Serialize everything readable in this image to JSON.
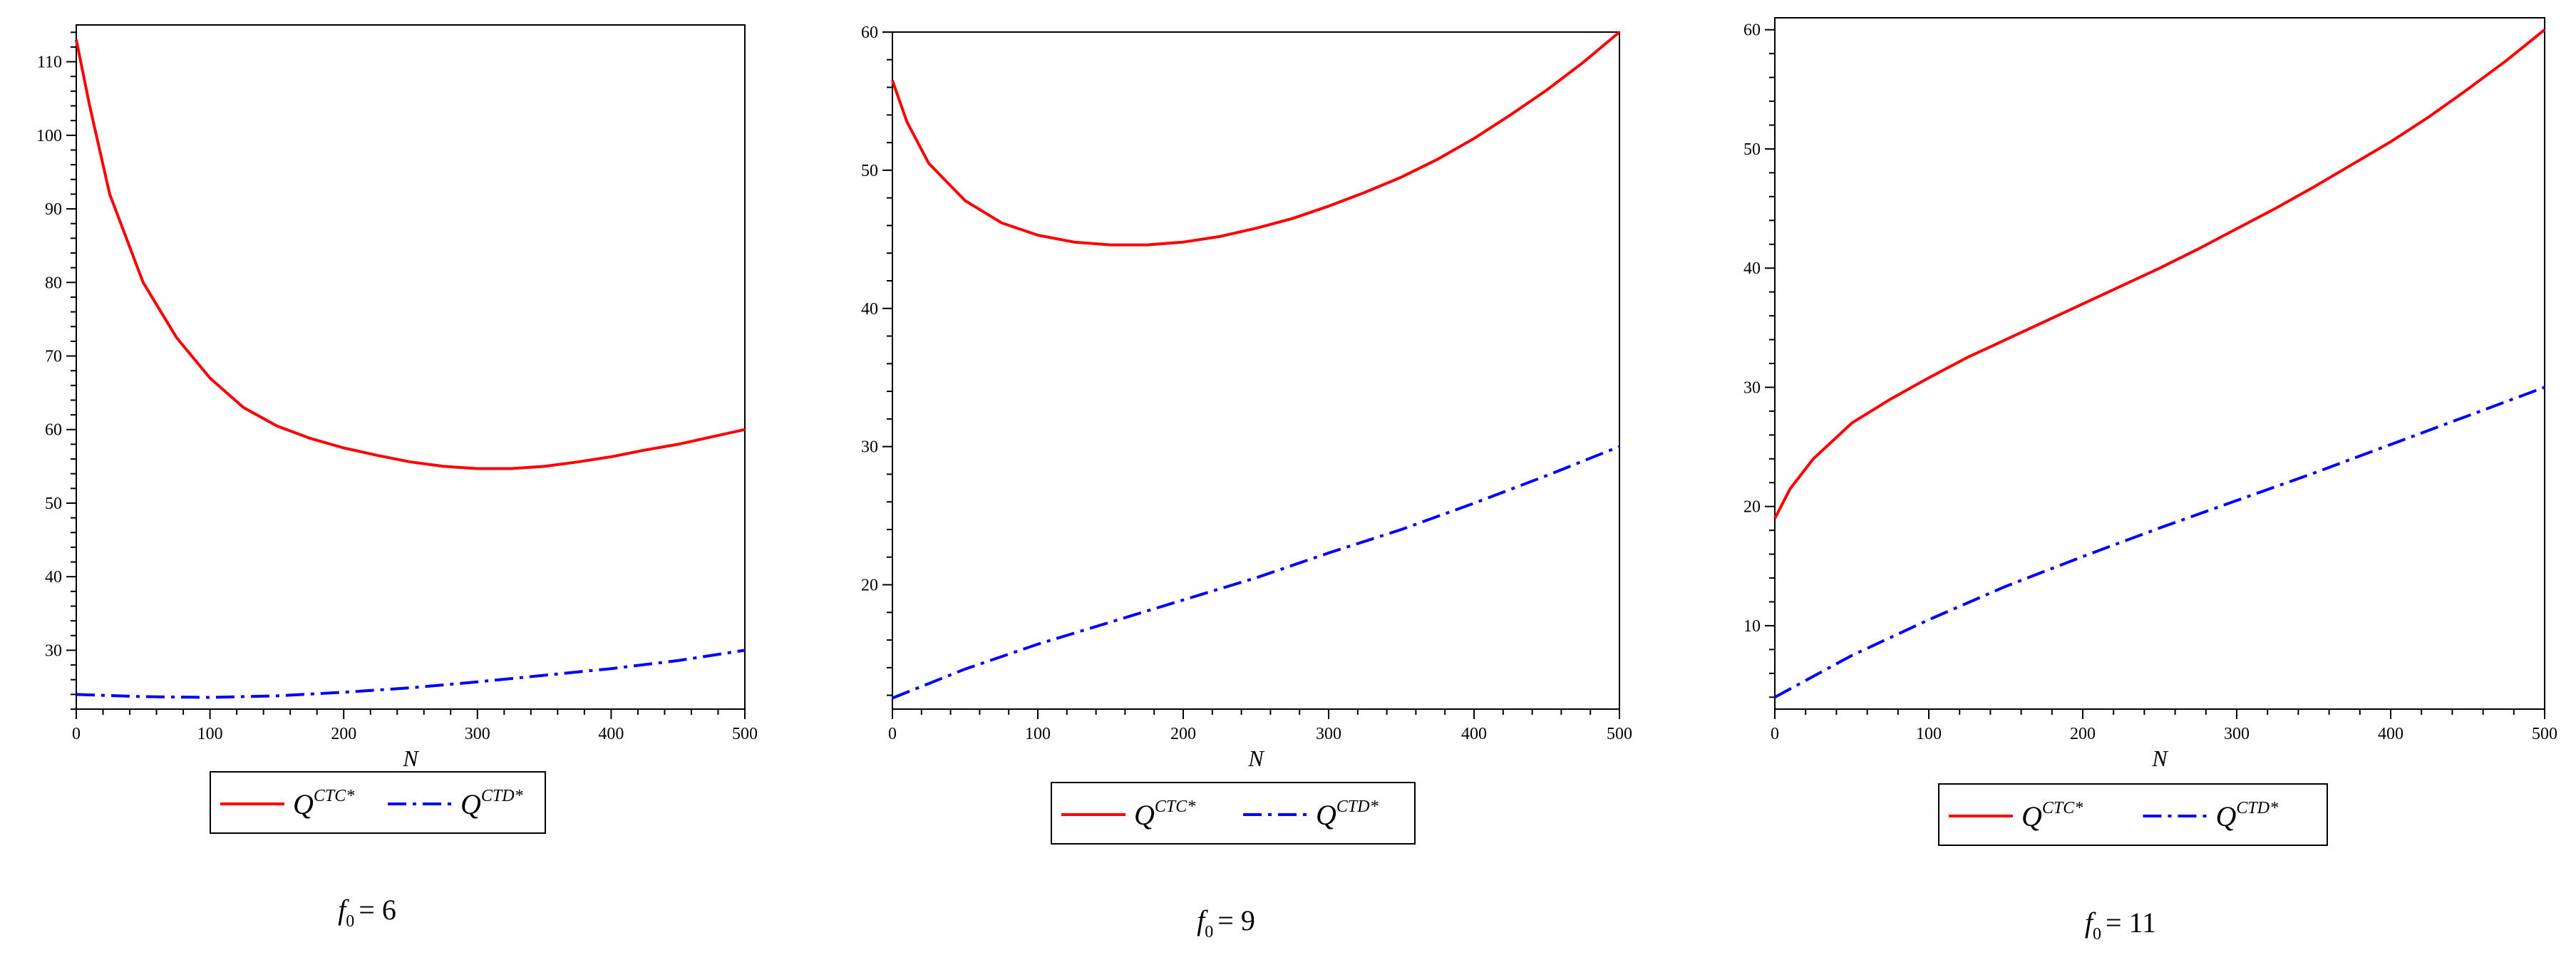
{
  "chart_data": [
    {
      "type": "line",
      "caption": {
        "var": "f",
        "sub": "0",
        "rel": "= 6"
      },
      "xlabel": "N",
      "ylabel": "",
      "xlim": [
        0,
        500
      ],
      "ylim": [
        22,
        115
      ],
      "xticks": [
        0,
        100,
        200,
        300,
        400,
        500
      ],
      "yticks": [
        30,
        40,
        50,
        60,
        70,
        80,
        90,
        100,
        110
      ],
      "legend_position": "below",
      "series": [
        {
          "name": "Q",
          "sup": "CTC*",
          "color": "#ff0000",
          "dash": "solid",
          "x": [
            0,
            10,
            25,
            50,
            75,
            100,
            125,
            150,
            175,
            200,
            225,
            250,
            275,
            300,
            325,
            350,
            375,
            400,
            425,
            450,
            475,
            500
          ],
          "y": [
            113,
            104,
            92,
            80,
            72.5,
            67,
            63,
            60.5,
            58.8,
            57.5,
            56.5,
            55.6,
            55,
            54.7,
            54.7,
            55,
            55.6,
            56.3,
            57.2,
            58,
            59,
            60
          ]
        },
        {
          "name": "Q",
          "sup": "CTD*",
          "color": "#0000ff",
          "dash": "dashdot",
          "x": [
            0,
            50,
            100,
            150,
            200,
            250,
            300,
            350,
            400,
            450,
            500
          ],
          "y": [
            24,
            23.7,
            23.6,
            23.8,
            24.3,
            24.9,
            25.7,
            26.6,
            27.5,
            28.6,
            30
          ]
        }
      ]
    },
    {
      "type": "line",
      "caption": {
        "var": "f",
        "sub": "0",
        "rel": "= 9"
      },
      "xlabel": "N",
      "ylabel": "",
      "xlim": [
        0,
        500
      ],
      "ylim": [
        11,
        60
      ],
      "xticks": [
        0,
        100,
        200,
        300,
        400,
        500
      ],
      "yticks": [
        20,
        30,
        40,
        50,
        60
      ],
      "legend_position": "below",
      "series": [
        {
          "name": "Q",
          "sup": "CTC*",
          "color": "#ff0000",
          "dash": "solid",
          "x": [
            0,
            10,
            25,
            50,
            75,
            100,
            125,
            150,
            175,
            200,
            225,
            250,
            275,
            300,
            325,
            350,
            375,
            400,
            425,
            450,
            475,
            500
          ],
          "y": [
            56.5,
            53.5,
            50.5,
            47.8,
            46.2,
            45.3,
            44.8,
            44.6,
            44.6,
            44.8,
            45.2,
            45.8,
            46.5,
            47.4,
            48.4,
            49.5,
            50.8,
            52.3,
            54,
            55.8,
            57.8,
            60
          ]
        },
        {
          "name": "Q",
          "sup": "CTD*",
          "color": "#0000ff",
          "dash": "dashdot",
          "x": [
            0,
            50,
            100,
            150,
            200,
            250,
            300,
            350,
            400,
            450,
            500
          ],
          "y": [
            11.8,
            13.9,
            15.7,
            17.3,
            18.9,
            20.5,
            22.3,
            24,
            25.9,
            27.9,
            30
          ]
        }
      ]
    },
    {
      "type": "line",
      "caption": {
        "var": "f",
        "sub": "0",
        "rel": "= 11"
      },
      "xlabel": "N",
      "ylabel": "",
      "xlim": [
        0,
        500
      ],
      "ylim": [
        3,
        61
      ],
      "xticks": [
        0,
        100,
        200,
        300,
        400,
        500
      ],
      "yticks": [
        10,
        20,
        30,
        40,
        50,
        60
      ],
      "legend_position": "below",
      "series": [
        {
          "name": "Q",
          "sup": "CTC*",
          "color": "#ff0000",
          "dash": "solid",
          "x": [
            0,
            10,
            25,
            50,
            75,
            100,
            125,
            150,
            175,
            200,
            225,
            250,
            275,
            300,
            325,
            350,
            375,
            400,
            425,
            450,
            475,
            500
          ],
          "y": [
            19,
            21.5,
            24,
            27,
            29,
            30.8,
            32.5,
            34,
            35.5,
            37,
            38.5,
            40,
            41.6,
            43.3,
            45,
            46.8,
            48.7,
            50.6,
            52.7,
            55,
            57.4,
            60
          ]
        },
        {
          "name": "Q",
          "sup": "CTD*",
          "color": "#0000ff",
          "dash": "dashdot",
          "x": [
            0,
            50,
            100,
            150,
            200,
            250,
            300,
            350,
            400,
            450,
            500
          ],
          "y": [
            4,
            7.5,
            10.5,
            13.3,
            15.8,
            18.2,
            20.5,
            22.8,
            25.2,
            27.6,
            30
          ]
        }
      ]
    }
  ]
}
